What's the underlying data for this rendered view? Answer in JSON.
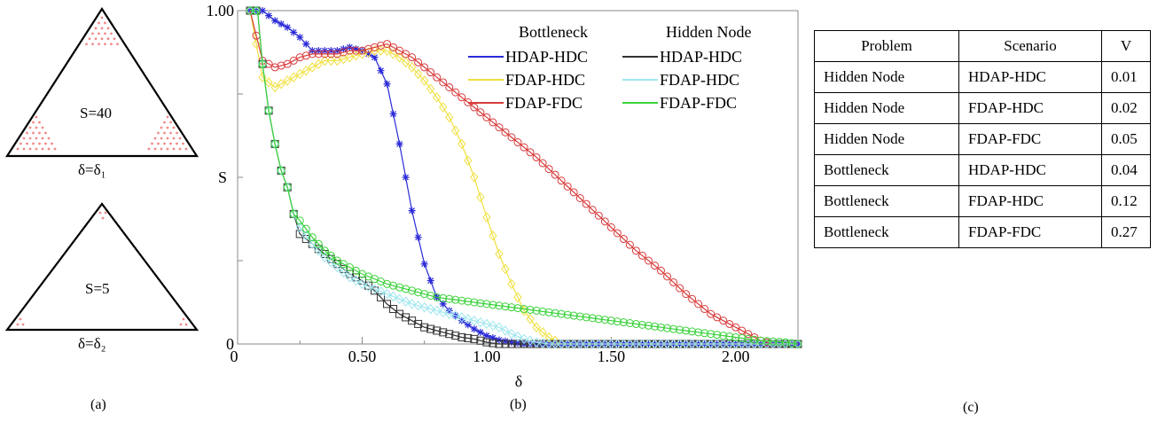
{
  "panel_a": {
    "triangles": [
      {
        "s_label": "S=40",
        "delta_label": "δ=δ₁"
      },
      {
        "s_label": "S=5",
        "delta_label": "δ=δ₂"
      }
    ],
    "caption": "(a)"
  },
  "panel_b": {
    "caption": "(b)"
  },
  "panel_c": {
    "caption": "(c)",
    "headers": [
      "Problem",
      "Scenario",
      "V"
    ],
    "rows": [
      [
        "Hidden Node",
        "HDAP-HDC",
        "0.01"
      ],
      [
        "Hidden Node",
        "FDAP-HDC",
        "0.02"
      ],
      [
        "Hidden Node",
        "FDAP-FDC",
        "0.05"
      ],
      [
        "Bottleneck",
        "HDAP-HDC",
        "0.04"
      ],
      [
        "Bottleneck",
        "FDAP-HDC",
        "0.12"
      ],
      [
        "Bottleneck",
        "FDAP-FDC",
        "0.27"
      ]
    ]
  },
  "colors": {
    "bn_hdap_hdc": "#2a2ad8",
    "bn_fdap_hdc": "#f0e040",
    "bn_fdap_fdc": "#d83a3a",
    "hn_hdap_hdc": "#333333",
    "hn_fdap_hdc": "#9ee6ee",
    "hn_fdap_fdc": "#3ad23a",
    "dots": "#f08a8a"
  },
  "chart_data": {
    "type": "line",
    "xlabel": "δ",
    "ylabel": "S",
    "xlim": [
      0,
      2.25
    ],
    "ylim": [
      0,
      1.0
    ],
    "x_ticks": [
      "0",
      "0.50",
      "1.00",
      "1.50",
      "2.00"
    ],
    "y_ticks": [
      "0",
      "1.00"
    ],
    "legend_groups": [
      "Bottleneck",
      "Hidden Node"
    ],
    "legend_placement": "top-right",
    "series": [
      {
        "name": "HDAP-HDC",
        "group": "Bottleneck",
        "color_key": "bn_hdap_hdc",
        "marker": "star",
        "points": [
          [
            0.05,
            1.0
          ],
          [
            0.1,
            1.0
          ],
          [
            0.15,
            0.97
          ],
          [
            0.2,
            0.95
          ],
          [
            0.25,
            0.92
          ],
          [
            0.3,
            0.88
          ],
          [
            0.35,
            0.88
          ],
          [
            0.4,
            0.88
          ],
          [
            0.45,
            0.89
          ],
          [
            0.5,
            0.88
          ],
          [
            0.55,
            0.86
          ],
          [
            0.6,
            0.78
          ],
          [
            0.65,
            0.6
          ],
          [
            0.7,
            0.4
          ],
          [
            0.75,
            0.24
          ],
          [
            0.8,
            0.14
          ],
          [
            0.85,
            0.1
          ],
          [
            0.9,
            0.07
          ],
          [
            0.95,
            0.045
          ],
          [
            1.0,
            0.025
          ],
          [
            1.05,
            0.012
          ],
          [
            1.1,
            0.005
          ],
          [
            1.15,
            0.0
          ],
          [
            1.25,
            0.0
          ],
          [
            1.5,
            0.0
          ],
          [
            1.75,
            0.0
          ],
          [
            2.0,
            0.0
          ],
          [
            2.25,
            0.0
          ]
        ]
      },
      {
        "name": "FDAP-HDC",
        "group": "Bottleneck",
        "color_key": "bn_fdap_hdc",
        "marker": "diamond",
        "points": [
          [
            0.05,
            1.0
          ],
          [
            0.1,
            0.8
          ],
          [
            0.15,
            0.77
          ],
          [
            0.2,
            0.79
          ],
          [
            0.25,
            0.81
          ],
          [
            0.3,
            0.83
          ],
          [
            0.35,
            0.85
          ],
          [
            0.4,
            0.85
          ],
          [
            0.45,
            0.86
          ],
          [
            0.5,
            0.87
          ],
          [
            0.55,
            0.88
          ],
          [
            0.6,
            0.88
          ],
          [
            0.65,
            0.86
          ],
          [
            0.7,
            0.83
          ],
          [
            0.75,
            0.79
          ],
          [
            0.8,
            0.74
          ],
          [
            0.85,
            0.68
          ],
          [
            0.9,
            0.6
          ],
          [
            0.95,
            0.5
          ],
          [
            1.0,
            0.38
          ],
          [
            1.05,
            0.27
          ],
          [
            1.1,
            0.18
          ],
          [
            1.15,
            0.1
          ],
          [
            1.2,
            0.05
          ],
          [
            1.25,
            0.02
          ],
          [
            1.3,
            0.0
          ],
          [
            1.5,
            0.0
          ],
          [
            2.0,
            0.0
          ],
          [
            2.25,
            0.0
          ]
        ]
      },
      {
        "name": "FDAP-FDC",
        "group": "Bottleneck",
        "color_key": "bn_fdap_fdc",
        "marker": "circle",
        "points": [
          [
            0.05,
            1.0
          ],
          [
            0.1,
            0.85
          ],
          [
            0.15,
            0.83
          ],
          [
            0.2,
            0.84
          ],
          [
            0.25,
            0.86
          ],
          [
            0.3,
            0.87
          ],
          [
            0.35,
            0.87
          ],
          [
            0.4,
            0.87
          ],
          [
            0.45,
            0.88
          ],
          [
            0.5,
            0.88
          ],
          [
            0.55,
            0.89
          ],
          [
            0.6,
            0.9
          ],
          [
            0.65,
            0.88
          ],
          [
            0.7,
            0.86
          ],
          [
            0.75,
            0.83
          ],
          [
            0.8,
            0.8
          ],
          [
            0.85,
            0.77
          ],
          [
            0.9,
            0.74
          ],
          [
            0.95,
            0.71
          ],
          [
            1.0,
            0.68
          ],
          [
            1.1,
            0.62
          ],
          [
            1.2,
            0.56
          ],
          [
            1.3,
            0.49
          ],
          [
            1.4,
            0.42
          ],
          [
            1.5,
            0.35
          ],
          [
            1.6,
            0.28
          ],
          [
            1.7,
            0.22
          ],
          [
            1.8,
            0.15
          ],
          [
            1.9,
            0.09
          ],
          [
            2.0,
            0.05
          ],
          [
            2.1,
            0.01
          ],
          [
            2.15,
            0.0
          ],
          [
            2.25,
            0.0
          ]
        ]
      },
      {
        "name": "HDAP-HDC",
        "group": "Hidden Node",
        "color_key": "hn_hdap_hdc",
        "marker": "square",
        "points": [
          [
            0.05,
            1.0
          ],
          [
            0.08,
            1.0
          ],
          [
            0.1,
            0.84
          ],
          [
            0.125,
            0.7
          ],
          [
            0.15,
            0.6
          ],
          [
            0.175,
            0.52
          ],
          [
            0.2,
            0.47
          ],
          [
            0.225,
            0.39
          ],
          [
            0.25,
            0.33
          ],
          [
            0.3,
            0.3
          ],
          [
            0.35,
            0.27
          ],
          [
            0.4,
            0.24
          ],
          [
            0.45,
            0.21
          ],
          [
            0.5,
            0.19
          ],
          [
            0.55,
            0.16
          ],
          [
            0.6,
            0.12
          ],
          [
            0.65,
            0.09
          ],
          [
            0.7,
            0.07
          ],
          [
            0.75,
            0.05
          ],
          [
            0.8,
            0.04
          ],
          [
            0.85,
            0.03
          ],
          [
            0.9,
            0.02
          ],
          [
            0.95,
            0.015
          ],
          [
            1.0,
            0.005
          ],
          [
            1.05,
            0.0
          ],
          [
            1.25,
            0.0
          ],
          [
            1.5,
            0.0
          ],
          [
            2.0,
            0.0
          ],
          [
            2.25,
            0.0
          ]
        ]
      },
      {
        "name": "FDAP-HDC",
        "group": "Hidden Node",
        "color_key": "hn_fdap_hdc",
        "marker": "diamond",
        "points": [
          [
            0.05,
            1.0
          ],
          [
            0.08,
            1.0
          ],
          [
            0.1,
            0.84
          ],
          [
            0.125,
            0.7
          ],
          [
            0.15,
            0.6
          ],
          [
            0.175,
            0.52
          ],
          [
            0.2,
            0.47
          ],
          [
            0.225,
            0.39
          ],
          [
            0.25,
            0.35
          ],
          [
            0.3,
            0.3
          ],
          [
            0.35,
            0.26
          ],
          [
            0.4,
            0.23
          ],
          [
            0.45,
            0.2
          ],
          [
            0.5,
            0.18
          ],
          [
            0.6,
            0.15
          ],
          [
            0.7,
            0.12
          ],
          [
            0.8,
            0.1
          ],
          [
            0.9,
            0.08
          ],
          [
            1.0,
            0.06
          ],
          [
            1.05,
            0.05
          ],
          [
            1.1,
            0.03
          ],
          [
            1.15,
            0.015
          ],
          [
            1.2,
            0.005
          ],
          [
            1.25,
            0.0
          ],
          [
            1.5,
            0.0
          ],
          [
            2.0,
            0.0
          ],
          [
            2.25,
            0.0
          ]
        ]
      },
      {
        "name": "FDAP-FDC",
        "group": "Hidden Node",
        "color_key": "hn_fdap_fdc",
        "marker": "circle",
        "points": [
          [
            0.05,
            1.0
          ],
          [
            0.08,
            1.0
          ],
          [
            0.1,
            0.84
          ],
          [
            0.125,
            0.7
          ],
          [
            0.15,
            0.6
          ],
          [
            0.175,
            0.52
          ],
          [
            0.2,
            0.47
          ],
          [
            0.225,
            0.39
          ],
          [
            0.25,
            0.37
          ],
          [
            0.3,
            0.32
          ],
          [
            0.35,
            0.28
          ],
          [
            0.4,
            0.25
          ],
          [
            0.45,
            0.23
          ],
          [
            0.5,
            0.21
          ],
          [
            0.6,
            0.18
          ],
          [
            0.7,
            0.16
          ],
          [
            0.8,
            0.14
          ],
          [
            0.9,
            0.13
          ],
          [
            1.0,
            0.12
          ],
          [
            1.1,
            0.11
          ],
          [
            1.2,
            0.1
          ],
          [
            1.3,
            0.09
          ],
          [
            1.4,
            0.08
          ],
          [
            1.5,
            0.07
          ],
          [
            1.6,
            0.06
          ],
          [
            1.7,
            0.05
          ],
          [
            1.8,
            0.04
          ],
          [
            1.9,
            0.03
          ],
          [
            2.0,
            0.02
          ],
          [
            2.1,
            0.01
          ],
          [
            2.2,
            0.005
          ],
          [
            2.25,
            0.0
          ]
        ]
      }
    ]
  }
}
